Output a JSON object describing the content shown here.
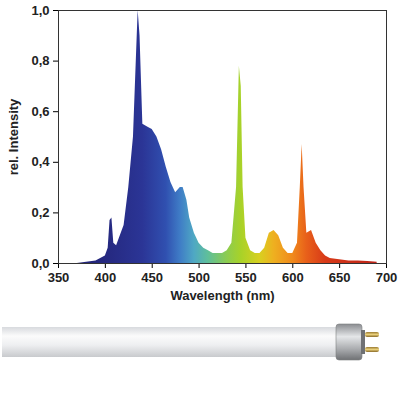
{
  "chart_data": {
    "type": "area",
    "x_label": "Wavelength (nm)",
    "y_label": "rel. Intensity",
    "x": [
      370,
      380,
      390,
      400,
      403,
      405,
      407,
      409,
      412,
      420,
      425,
      430,
      433,
      435,
      437,
      440,
      445,
      450,
      455,
      460,
      465,
      470,
      475,
      480,
      483,
      487,
      490,
      495,
      500,
      505,
      510,
      515,
      520,
      525,
      530,
      535,
      540,
      543,
      545,
      547,
      550,
      555,
      560,
      565,
      570,
      575,
      580,
      585,
      590,
      595,
      600,
      605,
      608,
      610,
      612,
      615,
      620,
      625,
      630,
      635,
      640,
      650,
      660,
      670,
      680,
      690
    ],
    "values": [
      0,
      0.005,
      0.01,
      0.03,
      0.06,
      0.17,
      0.18,
      0.08,
      0.07,
      0.15,
      0.3,
      0.5,
      0.8,
      1.0,
      0.9,
      0.55,
      0.54,
      0.53,
      0.5,
      0.45,
      0.38,
      0.32,
      0.28,
      0.3,
      0.3,
      0.25,
      0.18,
      0.12,
      0.08,
      0.06,
      0.05,
      0.04,
      0.04,
      0.04,
      0.05,
      0.08,
      0.3,
      0.78,
      0.7,
      0.3,
      0.1,
      0.05,
      0.04,
      0.04,
      0.06,
      0.12,
      0.13,
      0.11,
      0.06,
      0.04,
      0.04,
      0.08,
      0.3,
      0.47,
      0.3,
      0.12,
      0.13,
      0.08,
      0.05,
      0.03,
      0.02,
      0.015,
      0.01,
      0.01,
      0.008,
      0.005
    ],
    "xlim": [
      350,
      700
    ],
    "xticks": [
      350,
      400,
      450,
      500,
      550,
      600,
      650,
      700
    ],
    "ylim": [
      0,
      1
    ],
    "yticks": [
      {
        "value": 0,
        "label": "0,0"
      },
      {
        "value": 0.2,
        "label": "0,2"
      },
      {
        "value": 0.4,
        "label": "0,4"
      },
      {
        "value": 0.6,
        "label": "0,6"
      },
      {
        "value": 0.8,
        "label": "0,8"
      },
      {
        "value": 1,
        "label": "1,0"
      }
    ]
  }
}
